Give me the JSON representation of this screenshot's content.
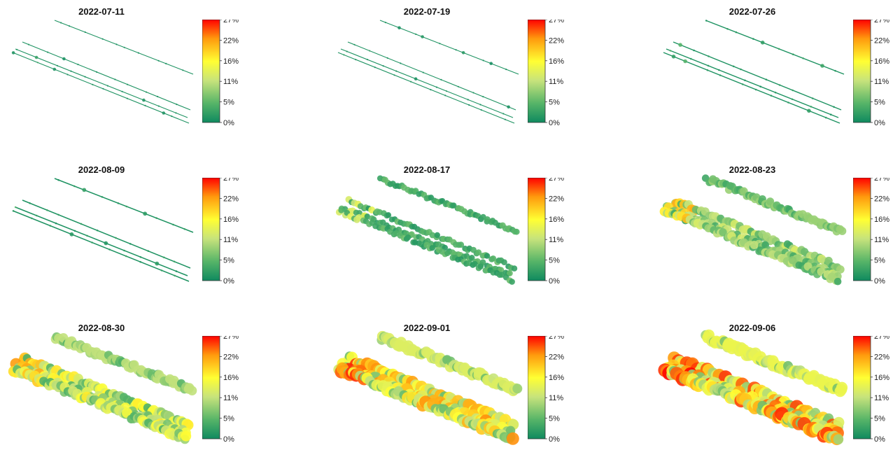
{
  "colors": {
    "scale": [
      "#0f8a5f",
      "#56b468",
      "#c7e37c",
      "#ffff33",
      "#ff9a0d",
      "#ff0000"
    ],
    "scale_stops_pct": [
      0,
      5,
      11,
      16,
      22,
      27
    ]
  },
  "chart_data": [
    {
      "type": "scatter",
      "title": "2022-07-11",
      "colorbar": {
        "ticks": [
          "27%",
          "22%",
          "16%",
          "11%",
          "5%",
          "0%"
        ],
        "range": [
          0,
          27
        ]
      },
      "mean_value": 1,
      "max_value": 3,
      "size_level": 0.1
    },
    {
      "type": "scatter",
      "title": "2022-07-19",
      "colorbar": {
        "ticks": [
          "27%",
          "22%",
          "16%",
          "11%",
          "5%",
          "0%"
        ],
        "range": [
          0,
          27
        ]
      },
      "mean_value": 1,
      "max_value": 3,
      "size_level": 0.1
    },
    {
      "type": "scatter",
      "title": "2022-07-26",
      "colorbar": {
        "ticks": [
          "27%",
          "22%",
          "16%",
          "11%",
          "5%",
          "0%"
        ],
        "range": [
          0,
          27
        ]
      },
      "mean_value": 2,
      "max_value": 5,
      "size_level": 0.25
    },
    {
      "type": "scatter",
      "title": "2022-08-09",
      "colorbar": {
        "ticks": [
          "27%",
          "22%",
          "16%",
          "11%",
          "5%",
          "0%"
        ],
        "range": [
          0,
          27
        ]
      },
      "mean_value": 2,
      "max_value": 5,
      "size_level": 0.3
    },
    {
      "type": "scatter",
      "title": "2022-08-17",
      "colorbar": {
        "ticks": [
          "27%",
          "22%",
          "16%",
          "11%",
          "5%",
          "0%"
        ],
        "range": [
          0,
          27
        ]
      },
      "mean_value": 4,
      "max_value": 14,
      "size_level": 0.45
    },
    {
      "type": "scatter",
      "title": "2022-08-23",
      "colorbar": {
        "ticks": [
          "27%",
          "22%",
          "16%",
          "11%",
          "5%",
          "0%"
        ],
        "range": [
          0,
          27
        ]
      },
      "mean_value": 8,
      "max_value": 21,
      "size_level": 0.7
    },
    {
      "type": "scatter",
      "title": "2022-08-30",
      "colorbar": {
        "ticks": [
          "27%",
          "22%",
          "16%",
          "11%",
          "5%",
          "0%"
        ],
        "range": [
          0,
          27
        ]
      },
      "mean_value": 11,
      "max_value": 22,
      "size_level": 0.85
    },
    {
      "type": "scatter",
      "title": "2022-09-01",
      "colorbar": {
        "ticks": [
          "27%",
          "22%",
          "16%",
          "11%",
          "5%",
          "0%"
        ],
        "range": [
          0,
          27
        ]
      },
      "mean_value": 14,
      "max_value": 26,
      "size_level": 0.95
    },
    {
      "type": "scatter",
      "title": "2022-09-06",
      "colorbar": {
        "ticks": [
          "27%",
          "22%",
          "16%",
          "11%",
          "5%",
          "0%"
        ],
        "range": [
          0,
          27
        ]
      },
      "mean_value": 16,
      "max_value": 27,
      "size_level": 1.0
    }
  ]
}
